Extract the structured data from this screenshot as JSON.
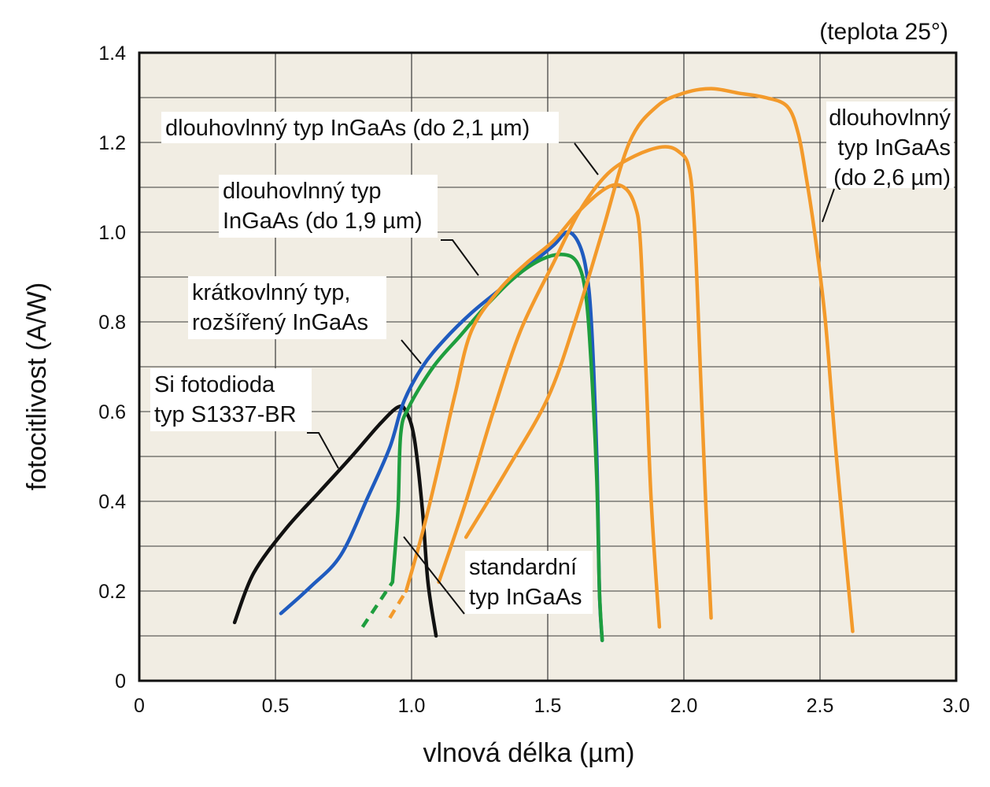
{
  "chart_data": {
    "type": "line",
    "title": "",
    "condition_note": "(teplota 25°)",
    "xlabel": "vlnová délka (µm)",
    "ylabel": "fotocitlivost (A/W)",
    "xlim": [
      0,
      3.0
    ],
    "ylim": [
      0,
      1.4
    ],
    "x_ticks": [
      "0",
      "0.5",
      "1.0",
      "1.5",
      "2.0",
      "2.5",
      "3.0"
    ],
    "y_ticks": [
      "0",
      "0.2",
      "0.4",
      "0.6",
      "0.8",
      "1.0",
      "1.2",
      "1.4"
    ],
    "grid": true,
    "background_color": "#f1ede3",
    "series": [
      {
        "color": "#111111",
        "points": [
          [
            0.35,
            0.13
          ],
          [
            0.42,
            0.24
          ],
          [
            0.54,
            0.34
          ],
          [
            0.66,
            0.42
          ],
          [
            0.78,
            0.5
          ],
          [
            0.88,
            0.57
          ],
          [
            0.95,
            0.61
          ],
          [
            0.98,
            0.6
          ],
          [
            1.01,
            0.54
          ],
          [
            1.04,
            0.38
          ],
          [
            1.06,
            0.22
          ],
          [
            1.09,
            0.1
          ]
        ]
      },
      {
        "color": "#1f5bbf",
        "points": [
          [
            0.52,
            0.15
          ],
          [
            0.63,
            0.21
          ],
          [
            0.74,
            0.28
          ],
          [
            0.84,
            0.41
          ],
          [
            0.92,
            0.52
          ],
          [
            0.97,
            0.62
          ],
          [
            1.04,
            0.7
          ],
          [
            1.12,
            0.76
          ],
          [
            1.22,
            0.82
          ],
          [
            1.32,
            0.87
          ],
          [
            1.42,
            0.92
          ],
          [
            1.52,
            0.97
          ],
          [
            1.57,
            1.0
          ],
          [
            1.61,
            0.98
          ],
          [
            1.64,
            0.92
          ],
          [
            1.66,
            0.8
          ],
          [
            1.68,
            0.5
          ],
          [
            1.69,
            0.2
          ],
          [
            1.7,
            0.09
          ]
        ]
      },
      {
        "color": "#1e9e3e",
        "points": [
          [
            0.93,
            0.22
          ],
          [
            0.95,
            0.38
          ],
          [
            0.96,
            0.55
          ],
          [
            0.99,
            0.61
          ],
          [
            1.08,
            0.7
          ],
          [
            1.18,
            0.77
          ],
          [
            1.28,
            0.84
          ],
          [
            1.38,
            0.9
          ],
          [
            1.48,
            0.94
          ],
          [
            1.56,
            0.95
          ],
          [
            1.61,
            0.93
          ],
          [
            1.64,
            0.86
          ],
          [
            1.66,
            0.7
          ],
          [
            1.68,
            0.45
          ],
          [
            1.69,
            0.2
          ],
          [
            1.7,
            0.09
          ]
        ],
        "dashed_tail": [
          [
            0.82,
            0.12
          ],
          [
            0.93,
            0.22
          ]
        ]
      },
      {
        "color": "#f39a2b",
        "points": [
          [
            0.98,
            0.2
          ],
          [
            1.04,
            0.33
          ],
          [
            1.1,
            0.48
          ],
          [
            1.16,
            0.64
          ],
          [
            1.22,
            0.78
          ],
          [
            1.32,
            0.87
          ],
          [
            1.42,
            0.93
          ],
          [
            1.52,
            0.98
          ],
          [
            1.62,
            1.05
          ],
          [
            1.72,
            1.1
          ],
          [
            1.78,
            1.1
          ],
          [
            1.82,
            1.06
          ],
          [
            1.84,
            0.98
          ],
          [
            1.86,
            0.7
          ],
          [
            1.88,
            0.4
          ],
          [
            1.91,
            0.12
          ]
        ],
        "dashed_tail": [
          [
            0.92,
            0.14
          ],
          [
            0.98,
            0.2
          ]
        ]
      },
      {
        "color": "#f39a2b",
        "points": [
          [
            1.1,
            0.22
          ],
          [
            1.2,
            0.4
          ],
          [
            1.3,
            0.6
          ],
          [
            1.4,
            0.78
          ],
          [
            1.52,
            0.93
          ],
          [
            1.62,
            1.05
          ],
          [
            1.72,
            1.13
          ],
          [
            1.82,
            1.17
          ],
          [
            1.92,
            1.19
          ],
          [
            1.98,
            1.18
          ],
          [
            2.02,
            1.14
          ],
          [
            2.04,
            1.0
          ],
          [
            2.06,
            0.7
          ],
          [
            2.08,
            0.4
          ],
          [
            2.1,
            0.14
          ]
        ]
      },
      {
        "color": "#f39a2b",
        "points": [
          [
            1.2,
            0.32
          ],
          [
            1.35,
            0.47
          ],
          [
            1.5,
            0.63
          ],
          [
            1.6,
            0.8
          ],
          [
            1.7,
            1.0
          ],
          [
            1.8,
            1.2
          ],
          [
            1.9,
            1.28
          ],
          [
            2.0,
            1.31
          ],
          [
            2.1,
            1.32
          ],
          [
            2.2,
            1.31
          ],
          [
            2.3,
            1.3
          ],
          [
            2.38,
            1.28
          ],
          [
            2.42,
            1.22
          ],
          [
            2.45,
            1.12
          ],
          [
            2.48,
            1.0
          ],
          [
            2.52,
            0.8
          ],
          [
            2.56,
            0.5
          ],
          [
            2.62,
            0.11
          ]
        ]
      }
    ],
    "annotations": [
      {
        "lines": [
          "dlouhovlnný typ InGaAs (do 2,1 µm)"
        ]
      },
      {
        "lines": [
          "dlouhovlnný typ",
          "InGaAs (do 1,9 µm)"
        ]
      },
      {
        "lines": [
          "krátkovlnný typ,",
          "rozšířený InGaAs"
        ]
      },
      {
        "lines": [
          "Si fotodioda",
          "typ S1337-BR"
        ]
      },
      {
        "lines": [
          "standardní",
          "typ InGaAs"
        ]
      },
      {
        "lines": [
          "dlouhovlnný",
          "typ InGaAs",
          "(do 2,6 µm)"
        ]
      }
    ]
  }
}
